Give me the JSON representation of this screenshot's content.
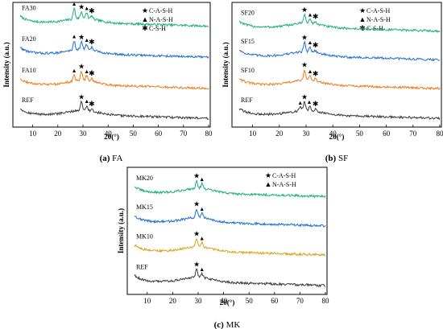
{
  "chart_data": [
    {
      "type": "line",
      "panel_letter": "(a)",
      "panel_name": "FA",
      "xlabel": "2θ(°)",
      "ylabel": "Intensity (a.u.)",
      "xlim": [
        5,
        80
      ],
      "xticks": [
        10,
        20,
        30,
        40,
        50,
        60,
        70,
        80
      ],
      "grid": false,
      "legend_position": "top-right",
      "legend": [
        {
          "marker": "★",
          "label": "C-A-S-H"
        },
        {
          "marker": "▲",
          "label": "N-A-S-H"
        },
        {
          "marker": "✱",
          "label": "C-S-H"
        }
      ],
      "series": [
        {
          "name": "FA30",
          "color": "#1aae82",
          "level": 0.84,
          "peaks": [
            [
              26.5,
              0.085
            ],
            [
              29.4,
              0.05
            ],
            [
              31.5,
              0.045
            ],
            [
              33.5,
              0.025
            ]
          ],
          "markers": [
            {
              "glyph": "▲",
              "x": 26.5
            },
            {
              "glyph": "★",
              "x": 29.4
            },
            {
              "glyph": "▲",
              "x": 31.5
            },
            {
              "glyph": "✱",
              "x": 33.5
            }
          ]
        },
        {
          "name": "FA20",
          "color": "#1f6fce",
          "level": 0.59,
          "peaks": [
            [
              26.5,
              0.075
            ],
            [
              29.4,
              0.06
            ],
            [
              31.5,
              0.04
            ],
            [
              33.5,
              0.025
            ]
          ],
          "markers": [
            {
              "glyph": "▲",
              "x": 26.5
            },
            {
              "glyph": "★",
              "x": 29.4
            },
            {
              "glyph": "▲",
              "x": 31.5
            },
            {
              "glyph": "✱",
              "x": 33.5
            }
          ]
        },
        {
          "name": "FA10",
          "color": "#f07a1a",
          "level": 0.34,
          "peaks": [
            [
              26.5,
              0.05
            ],
            [
              29.4,
              0.075
            ],
            [
              31.5,
              0.04
            ],
            [
              33.5,
              0.025
            ]
          ],
          "markers": [
            {
              "glyph": "▲",
              "x": 26.5
            },
            {
              "glyph": "★",
              "x": 29.4
            },
            {
              "glyph": "▲",
              "x": 31.5
            },
            {
              "glyph": "✱",
              "x": 33.5
            }
          ]
        },
        {
          "name": "REF",
          "color": "#3a3a3a",
          "level": 0.1,
          "peaks": [
            [
              29.4,
              0.07
            ],
            [
              31.5,
              0.04
            ],
            [
              33.5,
              0.02
            ]
          ],
          "markers": [
            {
              "glyph": "★",
              "x": 29.4
            },
            {
              "glyph": "▲",
              "x": 31.5
            },
            {
              "glyph": "✱",
              "x": 33.5
            }
          ]
        }
      ]
    },
    {
      "type": "line",
      "panel_letter": "(b)",
      "panel_name": "SF",
      "xlabel": "2θ(°)",
      "ylabel": "Intensity (a.u.)",
      "xlim": [
        5,
        80
      ],
      "xticks": [
        10,
        20,
        30,
        40,
        50,
        60,
        70,
        80
      ],
      "grid": false,
      "legend_position": "top-right",
      "legend": [
        {
          "marker": "★",
          "label": "C-A-S-H"
        },
        {
          "marker": "▲",
          "label": "N-A-S-H"
        },
        {
          "marker": "✱",
          "label": "C-S-H"
        }
      ],
      "series": [
        {
          "name": "SF20",
          "color": "#1aae82",
          "level": 0.8,
          "peaks": [
            [
              29.4,
              0.07
            ],
            [
              31.5,
              0.035
            ],
            [
              33.5,
              0.02
            ]
          ],
          "markers": [
            {
              "glyph": "★",
              "x": 29.4
            },
            {
              "glyph": "▲",
              "x": 31.5
            },
            {
              "glyph": "✱",
              "x": 33.5
            }
          ]
        },
        {
          "name": "SF15",
          "color": "#1f6fce",
          "level": 0.57,
          "peaks": [
            [
              29.4,
              0.075
            ],
            [
              31.5,
              0.04
            ],
            [
              33.5,
              0.02
            ]
          ],
          "markers": [
            {
              "glyph": "★",
              "x": 29.4
            },
            {
              "glyph": "▲",
              "x": 31.5
            },
            {
              "glyph": "✱",
              "x": 33.5
            }
          ]
        },
        {
          "name": "SF10",
          "color": "#f07a1a",
          "level": 0.34,
          "peaks": [
            [
              29.4,
              0.085
            ],
            [
              31.5,
              0.04
            ],
            [
              33.5,
              0.02
            ]
          ],
          "markers": [
            {
              "glyph": "★",
              "x": 29.4
            },
            {
              "glyph": "▲",
              "x": 31.5
            },
            {
              "glyph": "✱",
              "x": 33.5
            }
          ]
        },
        {
          "name": "REF",
          "color": "#3a3a3a",
          "level": 0.1,
          "peaks": [
            [
              27.8,
              0.03
            ],
            [
              29.4,
              0.07
            ],
            [
              31.5,
              0.035
            ],
            [
              33.5,
              0.02
            ]
          ],
          "markers": [
            {
              "glyph": "▲",
              "x": 27.8
            },
            {
              "glyph": "★",
              "x": 29.4
            },
            {
              "glyph": "▲",
              "x": 31.2
            },
            {
              "glyph": "✱",
              "x": 33.5
            }
          ]
        }
      ]
    },
    {
      "type": "line",
      "panel_letter": "(c)",
      "panel_name": "MK",
      "xlabel": "2θ(°)",
      "ylabel": "Intensity (a.u.)",
      "xlim": [
        5,
        80
      ],
      "xticks": [
        10,
        20,
        30,
        40,
        50,
        60,
        70,
        80
      ],
      "grid": false,
      "legend_position": "top-right",
      "legend": [
        {
          "marker": "★",
          "label": "C-A-S-H"
        },
        {
          "marker": "▲",
          "label": "N-A-S-H"
        }
      ],
      "series": [
        {
          "name": "MK20",
          "color": "#1aae82",
          "level": 0.8,
          "peaks": [
            [
              29.4,
              0.06
            ],
            [
              31.5,
              0.04
            ]
          ],
          "markers": [
            {
              "glyph": "★",
              "x": 29.4
            },
            {
              "glyph": "▲",
              "x": 31.5
            }
          ]
        },
        {
          "name": "MK15",
          "color": "#1f6fce",
          "level": 0.57,
          "peaks": [
            [
              29.4,
              0.07
            ],
            [
              31.5,
              0.035
            ]
          ],
          "markers": [
            {
              "glyph": "★",
              "x": 29.4
            },
            {
              "glyph": "▲",
              "x": 31.5
            }
          ]
        },
        {
          "name": "MK10",
          "color": "#d9a418",
          "level": 0.34,
          "peaks": [
            [
              29.4,
              0.065
            ],
            [
              31.5,
              0.035
            ]
          ],
          "markers": [
            {
              "glyph": "★",
              "x": 29.4
            },
            {
              "glyph": "▲",
              "x": 31.5
            }
          ]
        },
        {
          "name": "REF",
          "color": "#3a3a3a",
          "level": 0.1,
          "peaks": [
            [
              29.4,
              0.065
            ],
            [
              31.5,
              0.03
            ]
          ],
          "markers": [
            {
              "glyph": "★",
              "x": 29.4
            },
            {
              "glyph": "▲",
              "x": 31.5
            }
          ]
        }
      ]
    }
  ]
}
